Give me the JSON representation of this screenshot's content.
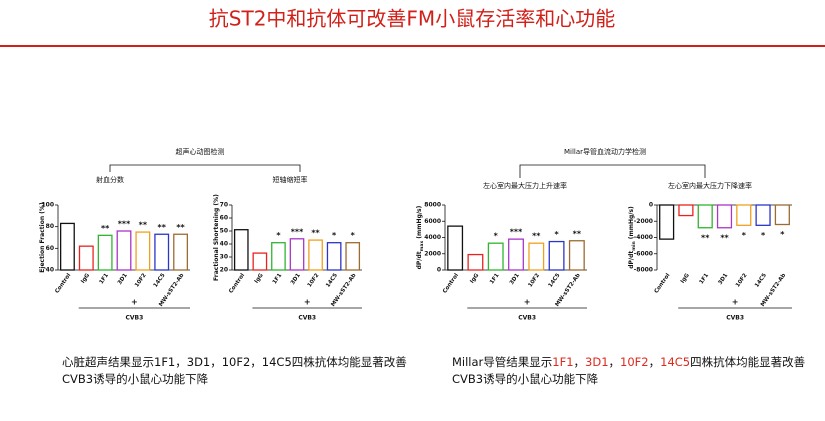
{
  "title": "抗ST2中和抗体可改善FM小鼠存活率和心功能",
  "groups": [
    "超声心动图检测",
    "Millar导管血流动力学检测"
  ],
  "caption_left": [
    "心脏超声结果显示1F1，3D1，10F2，14C5四株抗体均能显著改善",
    "CVB3诱导的小鼠心功能下降"
  ],
  "caption_right_parts": [
    {
      "text": "Millar导管结果显示",
      "color": "#111111"
    },
    {
      "text": "1F1",
      "color": "#e0281c"
    },
    {
      "text": "，",
      "color": "#111111"
    },
    {
      "text": "3D1",
      "color": "#e0281c"
    },
    {
      "text": "，",
      "color": "#111111"
    },
    {
      "text": "10F2",
      "color": "#e0281c"
    },
    {
      "text": "，",
      "color": "#111111"
    },
    {
      "text": "14C5",
      "color": "#e0281c"
    },
    {
      "text": "四株抗体均能显著改善",
      "color": "#111111"
    }
  ],
  "caption_right_line2": "CVB3诱导的小鼠心功能下降",
  "chart_data": [
    {
      "type": "bar",
      "title": "射血分数",
      "ylabel": "Ejection Fraction (%)",
      "categories": [
        "Control",
        "IgG",
        "1F1",
        "3D1",
        "10F2",
        "14C5",
        "MW-sST2-Ab"
      ],
      "values": [
        83,
        62,
        72,
        76,
        75,
        73,
        73
      ],
      "colors": [
        "#111111",
        "#e8231f",
        "#2fb52f",
        "#a935c9",
        "#f0a020",
        "#2b35c8",
        "#9c6b30"
      ],
      "sig_labels": [
        null,
        null,
        "**",
        "***",
        "**",
        "**",
        "**"
      ],
      "ylim": [
        40,
        100
      ],
      "yticks": [
        40,
        60,
        80,
        100
      ],
      "treatment": "+",
      "treatment_name": "CVB3"
    },
    {
      "type": "bar",
      "title": "短轴缩短率",
      "ylabel": "Fractional Shortening (%)",
      "categories": [
        "Control",
        "IgG",
        "1F1",
        "3D1",
        "10F2",
        "14C5",
        "MW-sST2-Ab"
      ],
      "values": [
        51,
        33,
        41,
        44,
        43,
        41,
        41
      ],
      "colors": [
        "#111111",
        "#e8231f",
        "#2fb52f",
        "#a935c9",
        "#f0a020",
        "#2b35c8",
        "#9c6b30"
      ],
      "sig_labels": [
        null,
        null,
        "*",
        "***",
        "**",
        "*",
        "*"
      ],
      "ylim": [
        20,
        70
      ],
      "yticks": [
        20,
        30,
        40,
        50,
        60,
        70
      ],
      "treatment": "+",
      "treatment_name": "CVB3"
    },
    {
      "type": "bar",
      "title": "左心室内最大压力上升速率",
      "ylabel": "dP/dt",
      "ylabel_sub": "max",
      "ylabel_unit": "(mmHg/s)",
      "categories": [
        "Control",
        "IgG",
        "1F1",
        "3D1",
        "10F2",
        "14C5",
        "MW-sST2-Ab"
      ],
      "values": [
        5400,
        1900,
        3300,
        3800,
        3300,
        3500,
        3600
      ],
      "colors": [
        "#111111",
        "#e8231f",
        "#2fb52f",
        "#a935c9",
        "#f0a020",
        "#2b35c8",
        "#9c6b30"
      ],
      "sig_labels": [
        null,
        null,
        "*",
        "***",
        "**",
        "*",
        "**"
      ],
      "ylim": [
        0,
        8000
      ],
      "yticks": [
        0,
        2000,
        4000,
        6000,
        8000
      ],
      "treatment": "+",
      "treatment_name": "CVB3"
    },
    {
      "type": "bar",
      "title": "左心室内最大压力下降速率",
      "ylabel": "dP/dt",
      "ylabel_sub": "min",
      "ylabel_unit": "(mmHg/s)",
      "categories": [
        "Control",
        "IgG",
        "1F1",
        "3D1",
        "10F2",
        "14C5",
        "MW-sST2-Ab"
      ],
      "values": [
        -4200,
        -1300,
        -2800,
        -2800,
        -2500,
        -2500,
        -2400
      ],
      "colors": [
        "#111111",
        "#e8231f",
        "#2fb52f",
        "#a935c9",
        "#f0a020",
        "#2b35c8",
        "#9c6b30"
      ],
      "sig_labels": [
        null,
        null,
        "**",
        "**",
        "*",
        "*",
        "*"
      ],
      "ylim": [
        -8000,
        0
      ],
      "yticks": [
        0,
        -2000,
        -4000,
        -6000,
        -8000
      ],
      "treatment": "+",
      "treatment_name": "CVB3"
    }
  ]
}
